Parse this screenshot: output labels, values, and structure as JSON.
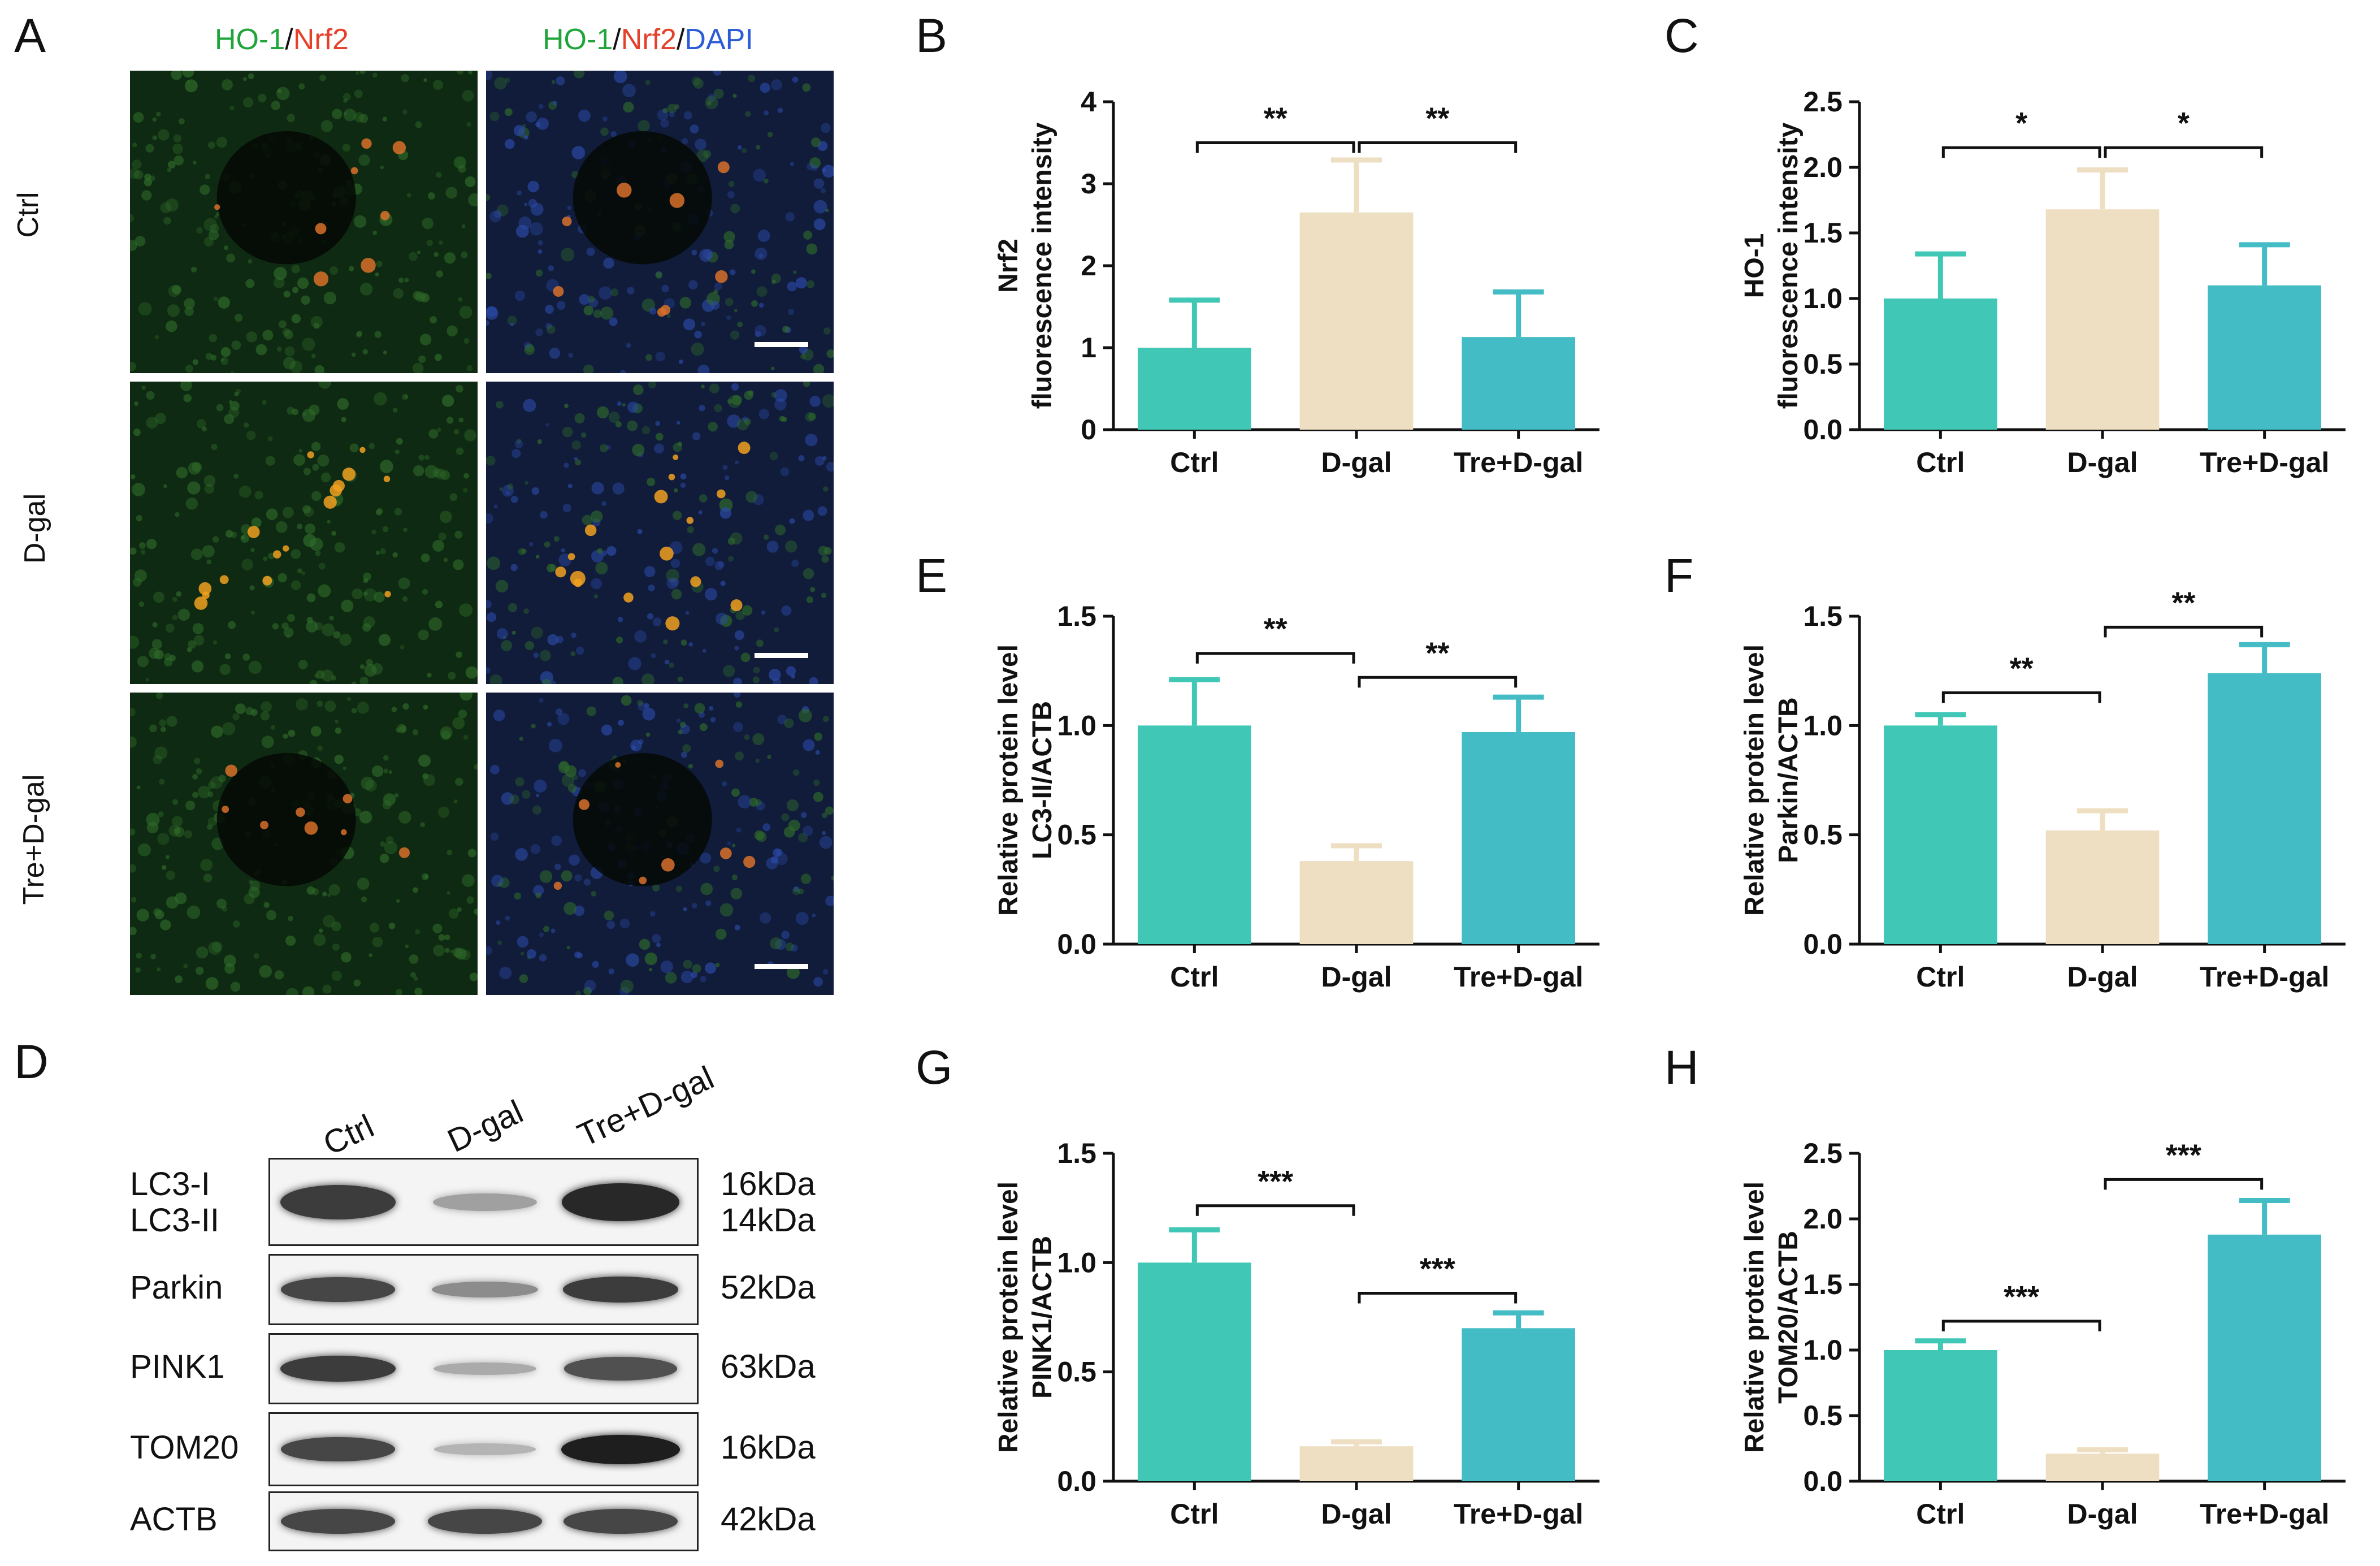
{
  "panel_letters": {
    "A": "A",
    "B": "B",
    "C": "C",
    "D": "D",
    "E": "E",
    "F": "F",
    "G": "G",
    "H": "H"
  },
  "microscopy": {
    "col1_title": {
      "p1": "HO-1",
      "sep1": "/",
      "p2": "Nrf2"
    },
    "col2_title": {
      "p1": "HO-1",
      "sep1": "/",
      "p2": "Nrf2",
      "sep2": "/",
      "p3": "DAPI"
    },
    "rows": [
      "Ctrl",
      "D-gal",
      "Tre+D-gal"
    ],
    "colors": {
      "green": "#1fa53a",
      "red": "#e5402a",
      "blue": "#2b5bd7"
    }
  },
  "western_blot": {
    "lanes": [
      "Ctrl",
      "D-gal",
      "Tre+D-gal"
    ],
    "proteins": [
      {
        "label": "LC3-I",
        "label2": "LC3-II",
        "kda": "16kDa",
        "kda2": "14kDa",
        "intensity": [
          0.85,
          0.35,
          0.95
        ]
      },
      {
        "label": "Parkin",
        "kda": "52kDa",
        "intensity": [
          0.8,
          0.45,
          0.85
        ]
      },
      {
        "label": "PINK1",
        "kda": "63kDa",
        "intensity": [
          0.85,
          0.3,
          0.75
        ]
      },
      {
        "label": "TOM20",
        "kda": "16kDa",
        "intensity": [
          0.8,
          0.25,
          1.0
        ]
      },
      {
        "label": "ACTB",
        "kda": "42kDa",
        "intensity": [
          0.8,
          0.8,
          0.8
        ]
      }
    ]
  },
  "chart_data": [
    {
      "id": "B",
      "type": "bar",
      "categories": [
        "Ctrl",
        "D-gal",
        "Tre+D-gal"
      ],
      "values": [
        1.0,
        2.65,
        1.13
      ],
      "errors": [
        0.58,
        0.64,
        0.55
      ],
      "ylabel_lines": [
        "Nrf2",
        "fluorescence intensity"
      ],
      "ylim": [
        0,
        4
      ],
      "yticks": [
        "0",
        "1",
        "2",
        "3",
        "4"
      ],
      "sig": [
        {
          "from": 0,
          "to": 1,
          "label": "**",
          "y": 3.5
        },
        {
          "from": 1,
          "to": 2,
          "label": "**",
          "y": 3.5
        }
      ]
    },
    {
      "id": "C",
      "type": "bar",
      "categories": [
        "Ctrl",
        "D-gal",
        "Tre+D-gal"
      ],
      "values": [
        1.0,
        1.68,
        1.1
      ],
      "errors": [
        0.34,
        0.3,
        0.31
      ],
      "ylabel_lines": [
        "HO-1",
        "fluorescence intensity"
      ],
      "ylim": [
        0,
        2.5
      ],
      "yticks": [
        "0.0",
        "0.5",
        "1.0",
        "1.5",
        "2.0",
        "2.5"
      ],
      "sig": [
        {
          "from": 0,
          "to": 1,
          "label": "*",
          "y": 2.15
        },
        {
          "from": 1,
          "to": 2,
          "label": "*",
          "y": 2.15
        }
      ]
    },
    {
      "id": "E",
      "type": "bar",
      "categories": [
        "Ctrl",
        "D-gal",
        "Tre+D-gal"
      ],
      "values": [
        1.0,
        0.38,
        0.97
      ],
      "errors": [
        0.21,
        0.07,
        0.16
      ],
      "ylabel_lines": [
        "Relative protein level",
        "LC3-II/ACTB"
      ],
      "ylim": [
        0,
        1.5
      ],
      "yticks": [
        "0.0",
        "0.5",
        "1.0",
        "1.5"
      ],
      "sig": [
        {
          "from": 0,
          "to": 1,
          "label": "**",
          "y": 1.33
        },
        {
          "from": 1,
          "to": 2,
          "label": "**",
          "y": 1.22
        }
      ]
    },
    {
      "id": "F",
      "type": "bar",
      "categories": [
        "Ctrl",
        "D-gal",
        "Tre+D-gal"
      ],
      "values": [
        1.0,
        0.52,
        1.24
      ],
      "errors": [
        0.05,
        0.09,
        0.13
      ],
      "ylabel_lines": [
        "Relative protein level",
        "Parkin/ACTB"
      ],
      "ylim": [
        0,
        1.5
      ],
      "yticks": [
        "0.0",
        "0.5",
        "1.0",
        "1.5"
      ],
      "sig": [
        {
          "from": 0,
          "to": 1,
          "label": "**",
          "y": 1.15
        },
        {
          "from": 1,
          "to": 2,
          "label": "**",
          "y": 1.45
        }
      ]
    },
    {
      "id": "G",
      "type": "bar",
      "categories": [
        "Ctrl",
        "D-gal",
        "Tre+D-gal"
      ],
      "values": [
        1.0,
        0.16,
        0.7
      ],
      "errors": [
        0.15,
        0.02,
        0.07
      ],
      "ylabel_lines": [
        "Relative protein level",
        "PINK1/ACTB"
      ],
      "ylim": [
        0,
        1.5
      ],
      "yticks": [
        "0.0",
        "0.5",
        "1.0",
        "1.5"
      ],
      "sig": [
        {
          "from": 0,
          "to": 1,
          "label": "***",
          "y": 1.26
        },
        {
          "from": 1,
          "to": 2,
          "label": "***",
          "y": 0.86
        }
      ]
    },
    {
      "id": "H",
      "type": "bar",
      "categories": [
        "Ctrl",
        "D-gal",
        "Tre+D-gal"
      ],
      "values": [
        1.0,
        0.21,
        1.88
      ],
      "errors": [
        0.07,
        0.03,
        0.26
      ],
      "ylabel_lines": [
        "Relative protein level",
        "TOM20/ACTB"
      ],
      "ylim": [
        0,
        2.5
      ],
      "yticks": [
        "0.0",
        "0.5",
        "1.0",
        "1.5",
        "2.0",
        "2.5"
      ],
      "sig": [
        {
          "from": 0,
          "to": 1,
          "label": "***",
          "y": 1.22
        },
        {
          "from": 1,
          "to": 2,
          "label": "***",
          "y": 2.3
        }
      ]
    }
  ],
  "bar_colors": [
    "#40c7b5",
    "#efdfc2",
    "#44bcc6"
  ]
}
